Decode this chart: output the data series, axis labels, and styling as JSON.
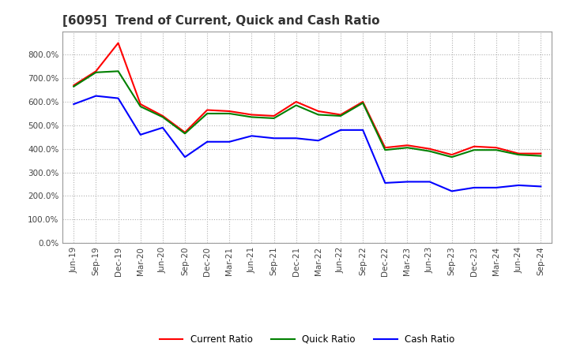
{
  "title": "[6095]  Trend of Current, Quick and Cash Ratio",
  "x_labels": [
    "Jun-19",
    "Sep-19",
    "Dec-19",
    "Mar-20",
    "Jun-20",
    "Sep-20",
    "Dec-20",
    "Mar-21",
    "Jun-21",
    "Sep-21",
    "Dec-21",
    "Mar-22",
    "Jun-22",
    "Sep-22",
    "Dec-22",
    "Mar-23",
    "Jun-23",
    "Sep-23",
    "Dec-23",
    "Mar-24",
    "Jun-24",
    "Sep-24"
  ],
  "current_ratio": [
    670,
    730,
    850,
    590,
    540,
    470,
    565,
    560,
    545,
    540,
    600,
    560,
    545,
    600,
    405,
    415,
    400,
    375,
    410,
    405,
    380,
    380
  ],
  "quick_ratio": [
    665,
    725,
    730,
    580,
    535,
    465,
    550,
    550,
    535,
    530,
    585,
    545,
    540,
    595,
    395,
    405,
    390,
    365,
    395,
    395,
    375,
    370
  ],
  "cash_ratio": [
    590,
    625,
    615,
    460,
    490,
    365,
    430,
    430,
    455,
    445,
    445,
    435,
    480,
    480,
    255,
    260,
    260,
    220,
    235,
    235,
    245,
    240
  ],
  "current_color": "#ff0000",
  "quick_color": "#008000",
  "cash_color": "#0000ff",
  "ylim": [
    0,
    900
  ],
  "yticks": [
    0,
    100,
    200,
    300,
    400,
    500,
    600,
    700,
    800
  ],
  "background_color": "#ffffff",
  "grid_color": "#b0b0b0",
  "title_fontsize": 11,
  "tick_fontsize": 7.5,
  "legend_fontsize": 8.5
}
